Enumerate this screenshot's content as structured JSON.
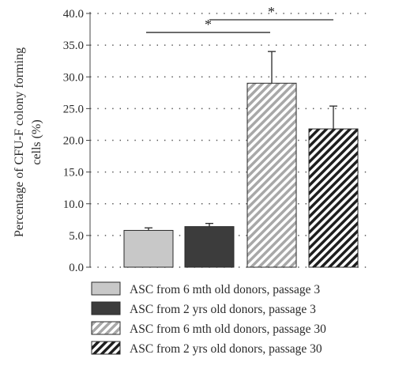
{
  "chart_data": {
    "type": "bar",
    "ylabel_lines": [
      "Percentage of CFU-F colony forming",
      "cells (%)"
    ],
    "ylim": [
      0,
      40
    ],
    "yticks": [
      "0.0",
      "5.0",
      "10.0",
      "15.0",
      "20.0",
      "25.0",
      "30.0",
      "35.0",
      "40.0"
    ],
    "grid": "dotted horizontal",
    "legend_position": "bottom",
    "series": [
      {
        "name": "ASC from 6 mth old donors, passage 3",
        "value": 5.8,
        "error": 0.4,
        "fill": "#c8c8c8",
        "pattern": "solid"
      },
      {
        "name": "ASC from 2 yrs old donors, passage 3",
        "value": 6.4,
        "error": 0.5,
        "fill": "#3c3c3c",
        "pattern": "solid"
      },
      {
        "name": "ASC from 6 mth old donors, passage 30",
        "value": 29.0,
        "error": 5.0,
        "fill": "#a8a8a8",
        "pattern": "diagonal-hatch"
      },
      {
        "name": "ASC from 2 yrs old donors, passage 30",
        "value": 21.8,
        "error": 3.6,
        "fill": "#1e1e1e",
        "pattern": "diagonal-hatch"
      }
    ],
    "significance": [
      {
        "from_bar": 0,
        "to_bar": 2,
        "label": "*",
        "y": 37.0
      },
      {
        "from_bar": 1,
        "to_bar": 3,
        "label": "*",
        "y": 39.0
      }
    ]
  }
}
